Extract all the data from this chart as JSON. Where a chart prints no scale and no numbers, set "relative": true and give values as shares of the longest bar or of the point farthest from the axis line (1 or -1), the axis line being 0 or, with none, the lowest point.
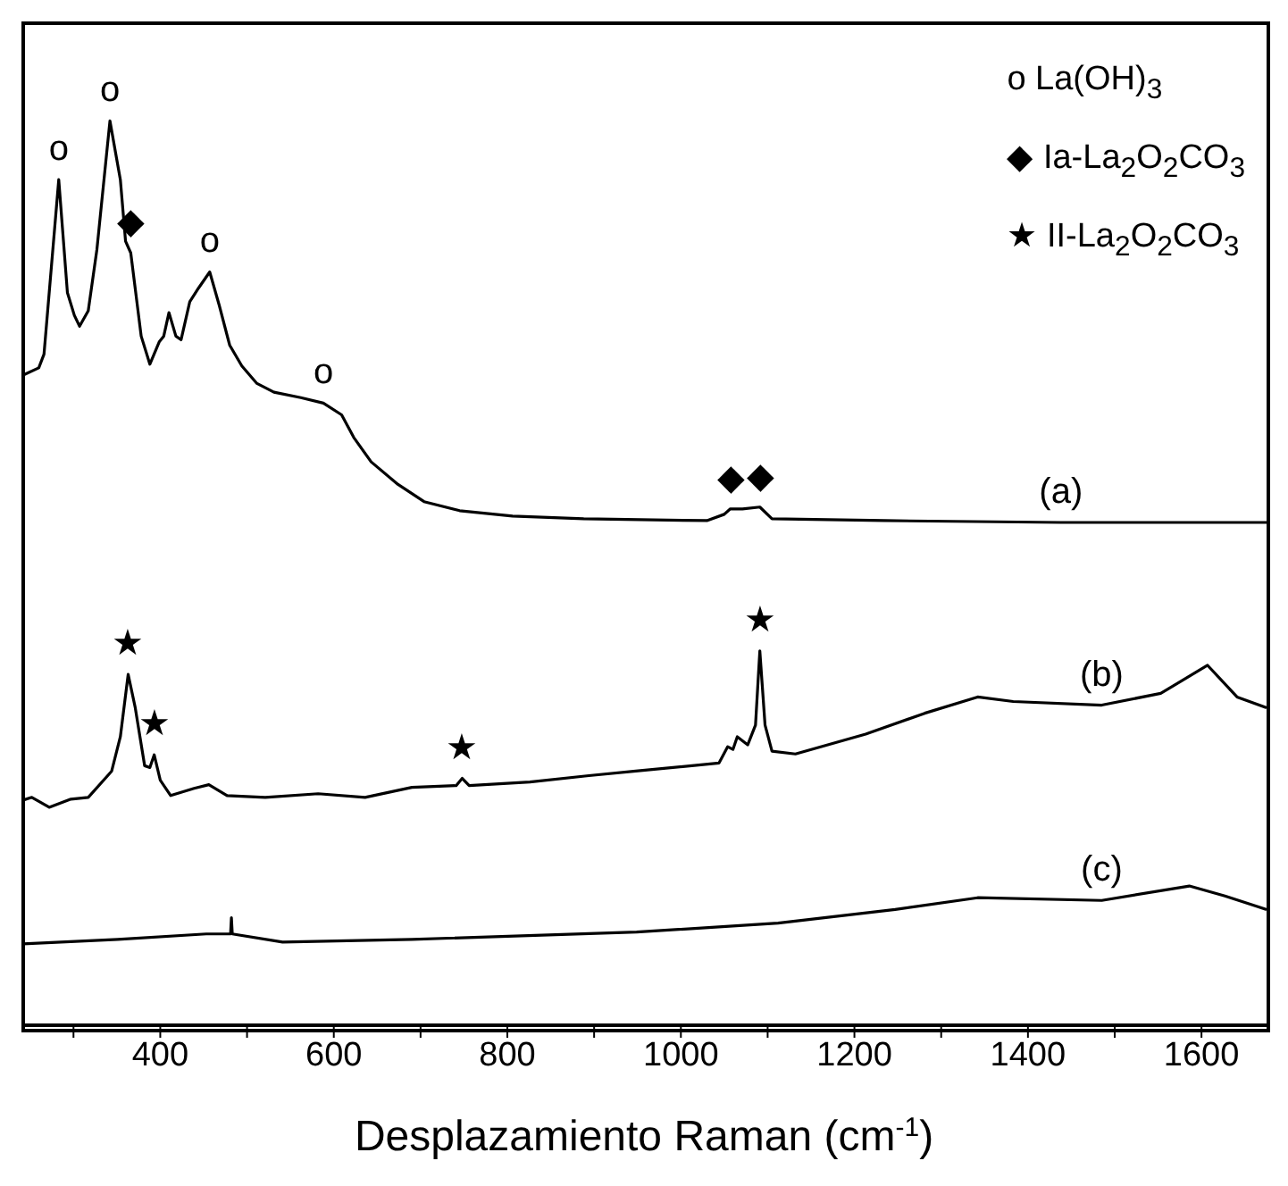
{
  "chart_data": {
    "type": "line",
    "relative": true,
    "xlabel": "Desplazamiento Raman (cm$^{-1}$)",
    "xlim": [
      240,
      1675
    ],
    "xticks": [
      {
        "value": 300,
        "label": null
      },
      400,
      {
        "value": 500,
        "label": null
      },
      600,
      {
        "value": 700,
        "label": null
      },
      800,
      {
        "value": 900,
        "label": null
      },
      1000,
      {
        "value": 1100,
        "label": null
      },
      1200,
      {
        "value": 1300,
        "label": null
      },
      1400,
      {
        "value": 1500,
        "label": null
      },
      1600
    ],
    "marker": "none",
    "line_style": "solid",
    "grid": false,
    "series": [
      {
        "color": "#000000",
        "x": [
          242,
          260,
          266,
          283,
          293,
          301,
          307,
          317,
          327,
          342,
          354,
          360,
          366,
          378,
          388,
          399,
          404,
          410,
          418,
          424,
          434,
          444,
          457,
          468,
          480,
          494,
          511,
          531,
          562,
          588,
          609,
          623,
          643,
          674,
          704,
          745,
          806,
          888,
          1030,
          1050,
          1057,
          1071,
          1091,
          1105,
          1234,
          1438,
          1675
        ],
        "values": [
          0.719,
          0.727,
          0.742,
          0.935,
          0.81,
          0.785,
          0.773,
          0.79,
          0.858,
          1.0,
          0.935,
          0.867,
          0.854,
          0.762,
          0.731,
          0.756,
          0.762,
          0.788,
          0.762,
          0.758,
          0.8,
          0.815,
          0.833,
          0.796,
          0.752,
          0.729,
          0.71,
          0.7,
          0.694,
          0.688,
          0.675,
          0.65,
          0.623,
          0.598,
          0.579,
          0.569,
          0.563,
          0.56,
          0.558,
          0.565,
          0.571,
          0.571,
          0.573,
          0.56,
          0.558,
          0.556,
          0.556
        ]
      },
      {
        "color": "#000000",
        "x": [
          242,
          252,
          272,
          297,
          317,
          344,
          354,
          363,
          371,
          382,
          388,
          393,
          400,
          412,
          439,
          456,
          477,
          521,
          582,
          636,
          690,
          741,
          748,
          756,
          826,
          894,
          948,
          1044,
          1054,
          1060,
          1065,
          1077,
          1086,
          1091,
          1097,
          1105,
          1132,
          1213,
          1281,
          1342,
          1383,
          1485,
          1553,
          1607,
          1641,
          1675
        ],
        "values": [
          0.249,
          0.252,
          0.241,
          0.25,
          0.252,
          0.281,
          0.319,
          0.388,
          0.352,
          0.287,
          0.285,
          0.299,
          0.271,
          0.254,
          0.262,
          0.266,
          0.254,
          0.252,
          0.256,
          0.252,
          0.263,
          0.265,
          0.273,
          0.265,
          0.269,
          0.276,
          0.281,
          0.29,
          0.308,
          0.305,
          0.319,
          0.31,
          0.332,
          0.414,
          0.332,
          0.303,
          0.3,
          0.322,
          0.345,
          0.363,
          0.358,
          0.354,
          0.367,
          0.398,
          0.363,
          0.351
        ]
      },
      {
        "color": "#000000",
        "x": [
          242,
          351,
          453,
          481,
          482,
          483,
          541,
          690,
          949,
          1112,
          1247,
          1342,
          1485,
          1586,
          1627,
          1675
        ],
        "values": [
          0.09,
          0.095,
          0.101,
          0.101,
          0.119,
          0.101,
          0.092,
          0.095,
          0.103,
          0.113,
          0.128,
          0.141,
          0.138,
          0.154,
          0.143,
          0.128
        ]
      }
    ],
    "annotations": [
      {
        "text": "o",
        "x": 283,
        "y": 0.935
      },
      {
        "text": "o",
        "x": 342,
        "y": 1.0
      },
      {
        "text": "◆",
        "x": 366,
        "y": 0.854
      },
      {
        "text": "o",
        "x": 457,
        "y": 0.833
      },
      {
        "text": "o",
        "x": 588,
        "y": 0.688
      },
      {
        "text": "◆",
        "x": 1057,
        "y": 0.571
      },
      {
        "text": "◆",
        "x": 1091,
        "y": 0.573
      },
      {
        "text": "(a)",
        "x": 1438,
        "y": 0.556
      },
      {
        "text": "★",
        "x": 363,
        "y": 0.388
      },
      {
        "text": "★",
        "x": 393,
        "y": 0.299
      },
      {
        "text": "★",
        "x": 748,
        "y": 0.273
      },
      {
        "text": "★",
        "x": 1091,
        "y": 0.414
      },
      {
        "text": "(b)",
        "x": 1485,
        "y": 0.354
      },
      {
        "text": "(c)",
        "x": 1485,
        "y": 0.138
      },
      "o  La(OH)$_{3}$",
      "◆  Ia-La$_{2}$O$_{2}$CO$_{3}$",
      "★  II-La$_{2}$O$_{2}$CO$_{3}$"
    ]
  }
}
